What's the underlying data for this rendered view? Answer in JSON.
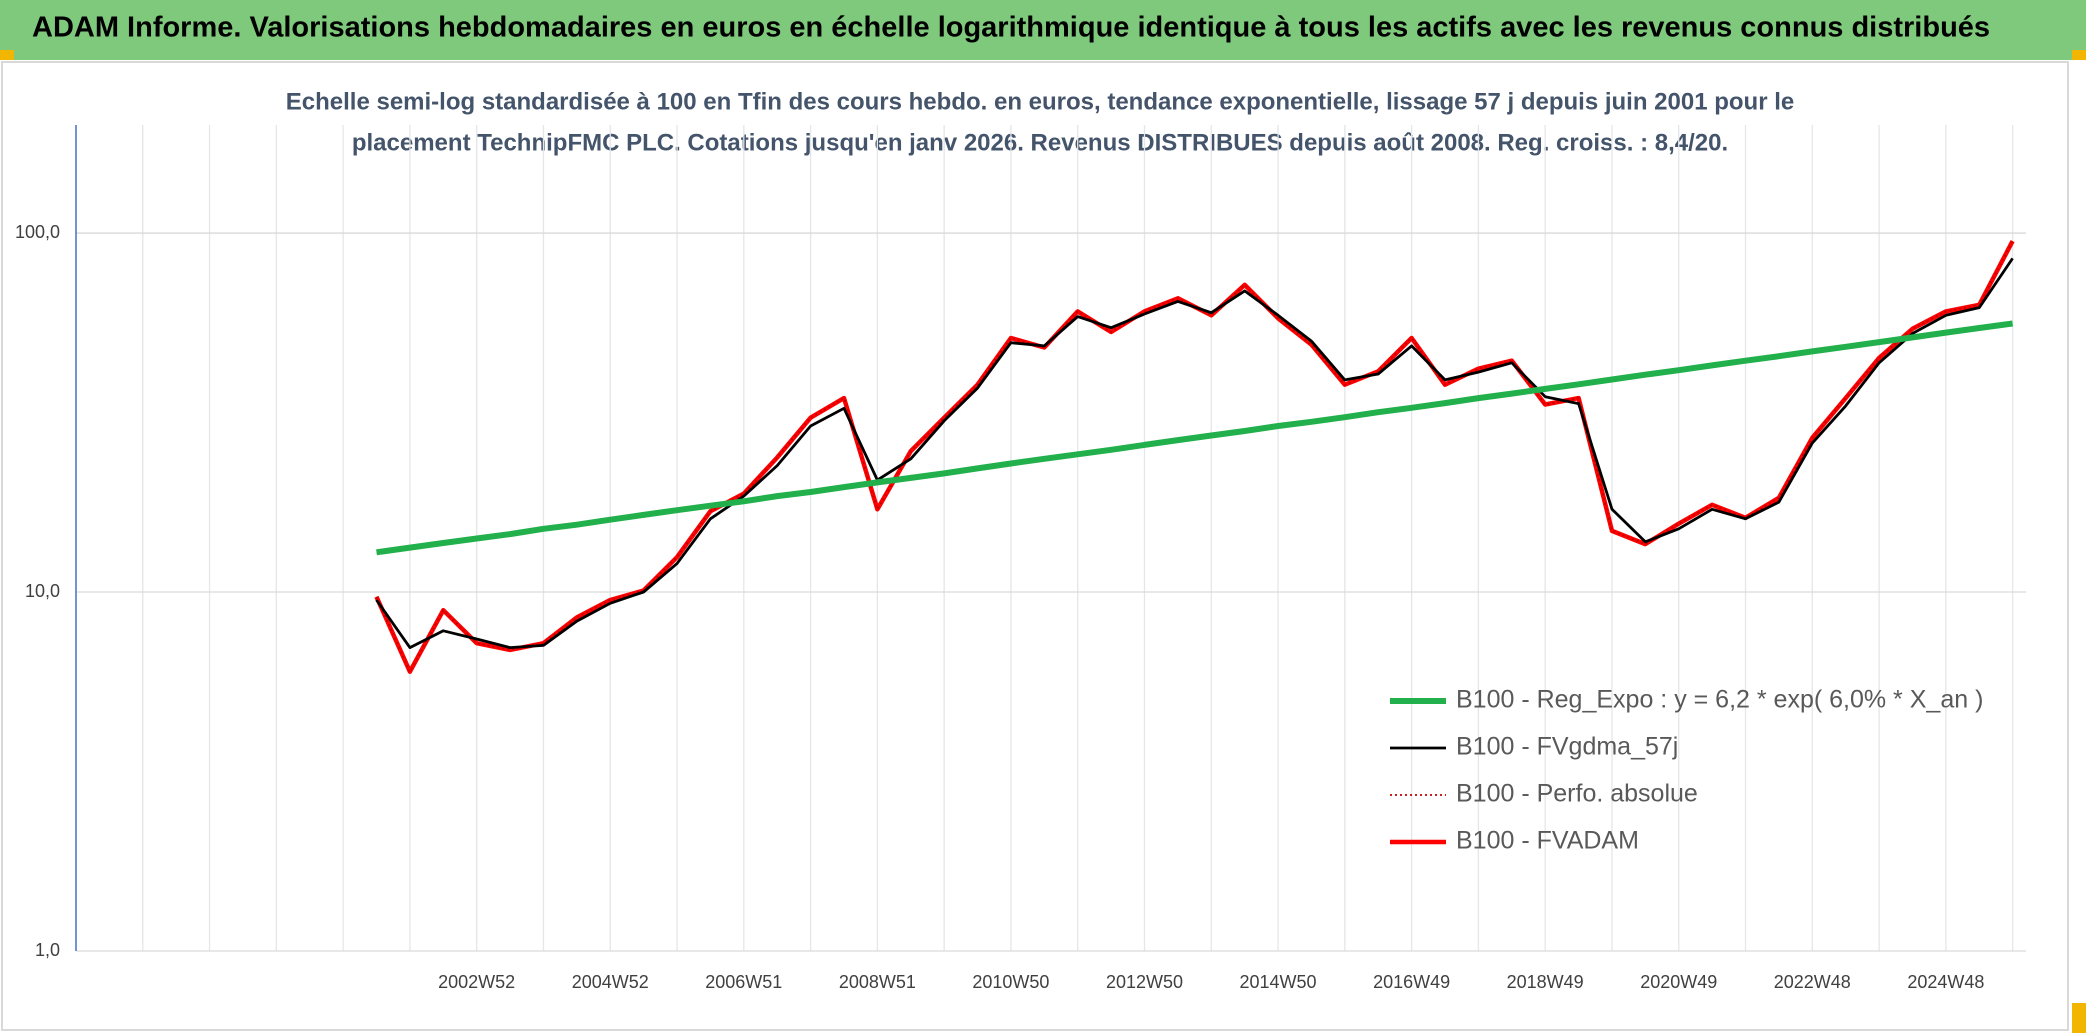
{
  "chart_data": {
    "type": "line",
    "title": "ADAM Informe. Valorisations hebdomadaires en euros en échelle logarithmique identique à tous les actifs avec les revenus connus distribués",
    "subtitle": [
      "Echelle semi-log standardisée à 100 en Tfin des cours hebdo. en euros, tendance exponentielle, lissage 57 j depuis juin 2001 pour le",
      "placement TechnipFMC PLC. Cotations jusqu'en janv 2026. Revenus DISTRIBUES depuis août 2008. Reg. croiss. : 8,4/20."
    ],
    "categories": [
      null,
      null,
      null,
      null,
      null,
      null,
      null,
      null,
      null,
      null,
      null,
      null,
      "2002W52",
      null,
      null,
      null,
      "2004W52",
      null,
      null,
      null,
      "2006W51",
      null,
      null,
      null,
      "2008W51",
      null,
      null,
      null,
      "2010W50",
      null,
      null,
      null,
      "2012W50",
      null,
      null,
      null,
      "2014W50",
      null,
      null,
      null,
      "2016W49",
      null,
      null,
      null,
      "2018W49",
      null,
      null,
      null,
      "2020W49",
      null,
      null,
      null,
      "2022W48",
      null,
      null,
      null,
      "2024W48",
      null,
      null
    ],
    "ylim": [
      1,
      200
    ],
    "yticks": [
      {
        "value": 1,
        "label": "1,0"
      },
      {
        "value": 10,
        "label": "10,0"
      },
      {
        "value": 100,
        "label": "100,0"
      }
    ],
    "log_scale": true,
    "grid": true,
    "legend": "right",
    "series": [
      {
        "name": "B100 - Reg_Expo : y = 6,2 * exp( 6,0% *  X_an )",
        "color": "#21b04b",
        "dash": "solid",
        "values": [
          null,
          null,
          null,
          null,
          null,
          null,
          null,
          null,
          null,
          12.9,
          13.3,
          13.7,
          14.1,
          14.5,
          15.0,
          15.4,
          15.9,
          16.4,
          16.9,
          17.4,
          17.9,
          18.5,
          19.0,
          19.6,
          20.2,
          20.8,
          21.4,
          22.1,
          22.8,
          23.5,
          24.2,
          24.9,
          25.7,
          26.5,
          27.3,
          28.1,
          29.0,
          29.8,
          30.7,
          31.7,
          32.6,
          33.6,
          34.7,
          35.7,
          36.8,
          37.9,
          39.1,
          40.3,
          41.5,
          42.8,
          44.1,
          45.4,
          46.8,
          48.2,
          49.7,
          51.2,
          52.8,
          54.4,
          56.0
        ]
      },
      {
        "name": "B100 - FVgdma_57j",
        "color": "#000000",
        "dash": "solid",
        "values": [
          null,
          null,
          null,
          null,
          null,
          null,
          null,
          null,
          null,
          9.5,
          7.0,
          7.8,
          7.4,
          7.0,
          7.1,
          8.3,
          9.3,
          10.0,
          12.0,
          16.0,
          18.5,
          22.5,
          29.0,
          32.5,
          20.5,
          23.5,
          30.0,
          37.0,
          49.5,
          48.5,
          58.5,
          54.5,
          59.5,
          64.5,
          60.0,
          69.0,
          59.0,
          50.0,
          39.0,
          40.5,
          48.5,
          39.0,
          41.0,
          43.5,
          35.0,
          33.5,
          17.0,
          13.8,
          15.0,
          17.0,
          16.0,
          17.8,
          26.0,
          33.0,
          43.5,
          52.5,
          59.0,
          62.0,
          85.0
        ]
      },
      {
        "name": "B100 - Perfo. absolue",
        "color": "#c00000",
        "dash": "dotted",
        "values": [
          null,
          null,
          null,
          null,
          null,
          null,
          null,
          null,
          null,
          9.7,
          6.0,
          8.9,
          7.2,
          6.9,
          7.2,
          8.5,
          9.5,
          10.1,
          12.5,
          16.8,
          18.8,
          23.7,
          30.6,
          34.7,
          17.0,
          24.7,
          30.6,
          37.8,
          51.0,
          48.0,
          60.5,
          53.0,
          60.5,
          65.8,
          59.0,
          71.7,
          57.9,
          48.9,
          37.8,
          41.2,
          51.0,
          37.8,
          41.9,
          44.1,
          33.3,
          34.7,
          14.8,
          13.6,
          15.5,
          17.5,
          16.1,
          18.3,
          26.9,
          34.7,
          44.9,
          54.1,
          60.5,
          63.1,
          95.0
        ]
      },
      {
        "name": "B100 - FVADAM",
        "color": "#ff0000",
        "dash": "solid",
        "values": [
          null,
          null,
          null,
          null,
          null,
          null,
          null,
          null,
          null,
          9.7,
          6.0,
          8.9,
          7.2,
          6.9,
          7.2,
          8.5,
          9.5,
          10.1,
          12.5,
          16.8,
          18.8,
          23.7,
          30.6,
          34.7,
          17.0,
          24.7,
          30.6,
          37.8,
          51.0,
          48.0,
          60.5,
          53.0,
          60.5,
          65.8,
          59.0,
          71.7,
          57.9,
          48.9,
          37.8,
          41.2,
          51.0,
          37.8,
          41.9,
          44.1,
          33.3,
          34.7,
          14.8,
          13.6,
          15.5,
          17.5,
          16.1,
          18.3,
          26.9,
          34.7,
          44.9,
          54.1,
          60.5,
          63.1,
          95.0
        ]
      }
    ]
  }
}
